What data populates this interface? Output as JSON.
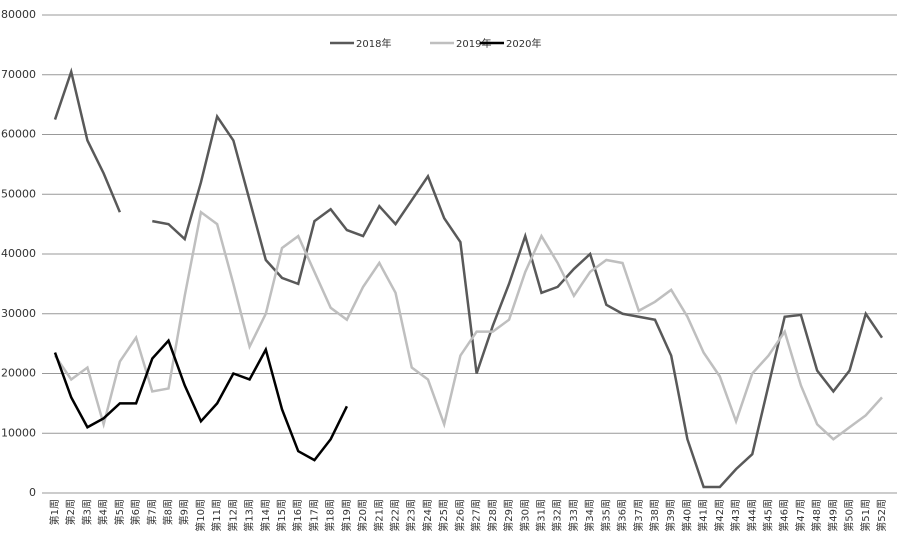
{
  "chart_data": {
    "type": "line",
    "categories": [
      "第1周",
      "第2周",
      "第3周",
      "第4周",
      "第5周",
      "第6周",
      "第7周",
      "第8周",
      "第9周",
      "第10周",
      "第11周",
      "第12周",
      "第13周",
      "第14周",
      "第15周",
      "第16周",
      "第17周",
      "第18周",
      "第19周",
      "第20周",
      "第21周",
      "第22周",
      "第23周",
      "第24周",
      "第25周",
      "第26周",
      "第27周",
      "第28周",
      "第29周",
      "第30周",
      "第31周",
      "第32周",
      "第33周",
      "第34周",
      "第35周",
      "第36周",
      "第37周",
      "第38周",
      "第39周",
      "第40周",
      "第41周",
      "第42周",
      "第43周",
      "第44周",
      "第45周",
      "第46周",
      "第47周",
      "第48周",
      "第49周",
      "第50周",
      "第51周",
      "第52周"
    ],
    "series": [
      {
        "name": "2018年",
        "color": "#595959",
        "values": [
          62500,
          70500,
          59000,
          53500,
          47000,
          null,
          45500,
          45000,
          42500,
          52000,
          63000,
          59000,
          49000,
          39000,
          36000,
          35000,
          45500,
          47500,
          44000,
          43000,
          48000,
          45000,
          49000,
          53000,
          46000,
          42000,
          20000,
          28000,
          35000,
          43000,
          33500,
          34500,
          37500,
          40000,
          31500,
          30000,
          29500,
          29000,
          23000,
          9000,
          1000,
          1000,
          4000,
          6500,
          18000,
          29500,
          29800,
          20500,
          17000,
          20500,
          30000,
          26000
        ]
      },
      {
        "name": "2019年",
        "color": "#bfbfbf",
        "values": [
          23000,
          19000,
          21000,
          11500,
          22000,
          26000,
          17000,
          17500,
          33000,
          47000,
          45000,
          35000,
          24500,
          30000,
          41000,
          43000,
          37000,
          31000,
          29000,
          34500,
          38500,
          33500,
          21000,
          19000,
          11500,
          23000,
          27000,
          27000,
          29000,
          37000,
          43000,
          38500,
          33000,
          37000,
          39000,
          38500,
          30500,
          32000,
          34000,
          29500,
          23500,
          19500,
          12000,
          20000,
          23000,
          27000,
          18000,
          11500,
          9000,
          11000,
          13000,
          16000
        ]
      },
      {
        "name": "2020年",
        "color": "#000000",
        "values": [
          23500,
          16000,
          11000,
          12500,
          15000,
          15000,
          22500,
          25500,
          18000,
          12000,
          15000,
          20000,
          19000,
          24000,
          14000,
          7000,
          5500,
          9000,
          14500,
          null,
          null,
          null,
          null,
          null,
          null,
          null,
          null,
          null,
          null,
          null,
          null,
          null,
          null,
          null,
          null,
          null,
          null,
          null,
          null,
          null,
          null,
          null,
          null,
          null,
          null,
          null,
          null,
          null,
          null,
          null,
          null,
          null
        ]
      }
    ],
    "ylim": [
      0,
      80000
    ],
    "yticks": [
      0,
      10000,
      20000,
      30000,
      40000,
      50000,
      60000,
      70000,
      80000
    ],
    "grid": true
  }
}
